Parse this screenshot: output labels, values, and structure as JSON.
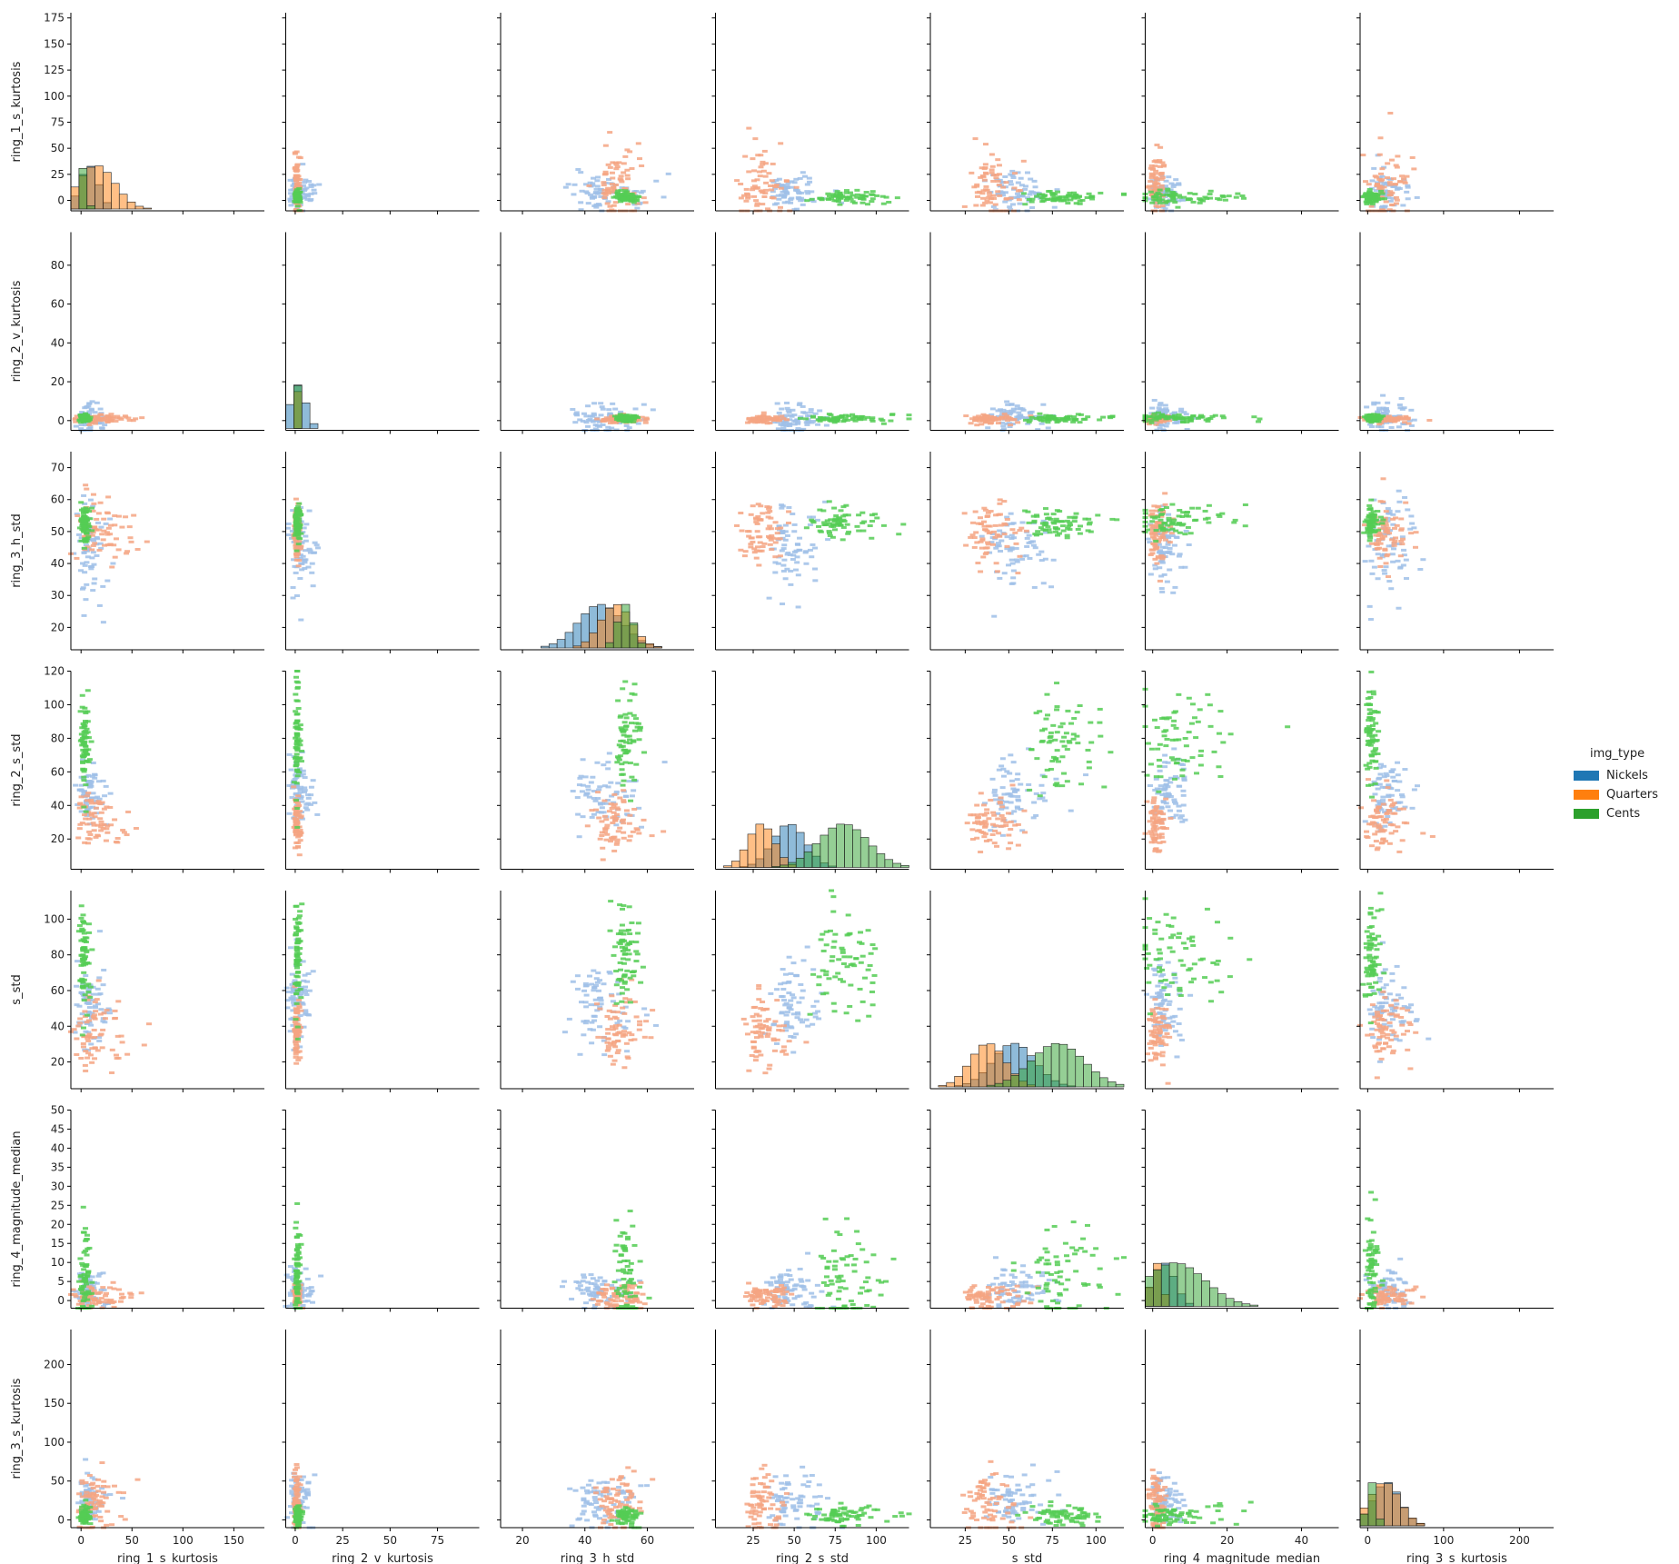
{
  "chart_data": {
    "type": "pairplot",
    "plot_kinds": {
      "diagonal": "histogram",
      "off_diagonal": "2d-histogram"
    },
    "variables": [
      "ring_1_s_kurtosis",
      "ring_2_v_kurtosis",
      "ring_3_h_std",
      "ring_2_s_std",
      "s_std",
      "ring_4_magnitude_median",
      "ring_3_s_kurtosis"
    ],
    "axes": [
      {
        "name": "ring_1_s_kurtosis",
        "range": [
          -10,
          180
        ],
        "ticks": [
          0,
          50,
          100,
          150
        ],
        "yticks": [
          0,
          25,
          50,
          75,
          100,
          125,
          150,
          175
        ]
      },
      {
        "name": "ring_2_v_kurtosis",
        "range": [
          -5,
          97
        ],
        "ticks": [
          0,
          25,
          50,
          75
        ],
        "yticks": [
          0,
          20,
          40,
          60,
          80
        ]
      },
      {
        "name": "ring_3_h_std",
        "range": [
          13,
          75
        ],
        "ticks": [
          20,
          40,
          60
        ],
        "yticks": [
          20,
          30,
          40,
          50,
          60,
          70
        ]
      },
      {
        "name": "ring_2_s_std",
        "range": [
          2,
          120
        ],
        "ticks": [
          25,
          50,
          75,
          100
        ],
        "yticks": [
          20,
          40,
          60,
          80,
          100,
          120
        ]
      },
      {
        "name": "s_std",
        "range": [
          5,
          116
        ],
        "ticks": [
          25,
          50,
          75,
          100
        ],
        "yticks": [
          20,
          40,
          60,
          80,
          100
        ]
      },
      {
        "name": "ring_4_magnitude_median",
        "range": [
          -2,
          50
        ],
        "ticks": [
          0,
          20,
          40
        ],
        "yticks": [
          0,
          5,
          10,
          15,
          20,
          25,
          30,
          35,
          40,
          45,
          50
        ]
      },
      {
        "name": "ring_3_s_kurtosis",
        "range": [
          -10,
          245
        ],
        "ticks": [
          0,
          100,
          200
        ],
        "yticks": [
          0,
          50,
          100,
          150,
          200
        ]
      }
    ],
    "hue": {
      "title": "img_type",
      "categories": [
        "Nickels",
        "Quarters",
        "Cents"
      ],
      "colors": [
        "#1f77b4",
        "#ff7f0e",
        "#2ca02c"
      ],
      "light_colors": [
        "#9fc0e8",
        "#f4a582",
        "#55cc55"
      ],
      "centers": {
        "Nickels": [
          8,
          1.5,
          45,
          47,
          53,
          3,
          25
        ],
        "Quarters": [
          15,
          0.8,
          50,
          30,
          38,
          1,
          22
        ],
        "Cents": [
          3,
          1.2,
          53,
          80,
          78,
          6,
          5
        ]
      },
      "spreads": {
        "Nickels": [
          9,
          4,
          7,
          10,
          12,
          3,
          18
        ],
        "Quarters": [
          18,
          1,
          5,
          8,
          10,
          1.5,
          20
        ],
        "Cents": [
          3,
          1,
          2.5,
          15,
          15,
          8,
          6
        ]
      }
    },
    "legend_position": "center-right"
  }
}
